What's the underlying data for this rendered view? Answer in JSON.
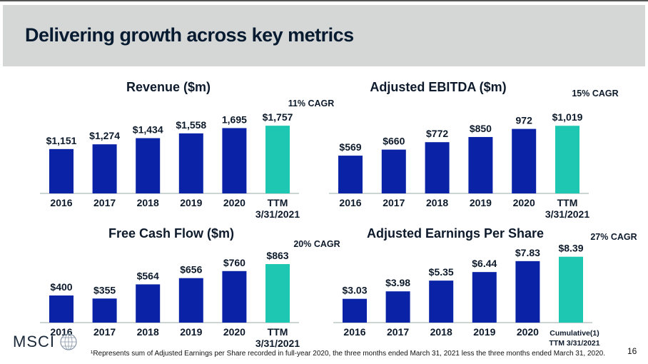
{
  "slide": {
    "title": "Delivering growth across key metrics",
    "footnote": "¹Represents sum of Adjusted Earnings per Share recorded in full-year 2020, the three months ended March 31, 2021 less the three months ended March 31, 2020.",
    "page_number": "16",
    "logo_text": "MSCI"
  },
  "colors": {
    "bar": "#0a23a6",
    "highlight": "#1dc7b1",
    "text": "#0d1a2b"
  },
  "chart_data": [
    {
      "type": "bar",
      "title": "Revenue ($m)",
      "cagr": "11% CAGR",
      "categories": [
        "2016",
        "2017",
        "2018",
        "2019",
        "2020",
        "TTM\n3/31/2021"
      ],
      "values": [
        1151,
        1274,
        1434,
        1558,
        1695,
        1757
      ],
      "labels": [
        "$1,151",
        "$1,274",
        "$1,434",
        "$1,558",
        "1,695",
        "$1,757"
      ]
    },
    {
      "type": "bar",
      "title": "Adjusted EBITDA ($m)",
      "cagr": "15% CAGR",
      "categories": [
        "2016",
        "2017",
        "2018",
        "2019",
        "2020",
        "TTM\n3/31/2021"
      ],
      "values": [
        569,
        660,
        772,
        850,
        972,
        1019
      ],
      "labels": [
        "$569",
        "$660",
        "$772",
        "$850",
        "972",
        "$1,019"
      ]
    },
    {
      "type": "bar",
      "title": "Free Cash Flow ($m)",
      "cagr": "20% CAGR",
      "categories": [
        "2016",
        "2017",
        "2018",
        "2019",
        "2020",
        "TTM\n3/31/2021"
      ],
      "values": [
        400,
        355,
        564,
        656,
        760,
        863
      ],
      "labels": [
        "$400",
        "$355",
        "$564",
        "$656",
        "$760",
        "$863"
      ]
    },
    {
      "type": "bar",
      "title": "Adjusted Earnings Per Share",
      "cagr": "27% CAGR",
      "categories": [
        "2016",
        "2017",
        "2018",
        "2019",
        "2020",
        "Cumulative(1)\nTTM 3/31/2021"
      ],
      "values": [
        3.03,
        3.98,
        5.35,
        6.44,
        7.83,
        8.39
      ],
      "labels": [
        "$3.03",
        "$3.98",
        "$5.35",
        "$6.44",
        "$7.83",
        "$8.39"
      ]
    }
  ]
}
